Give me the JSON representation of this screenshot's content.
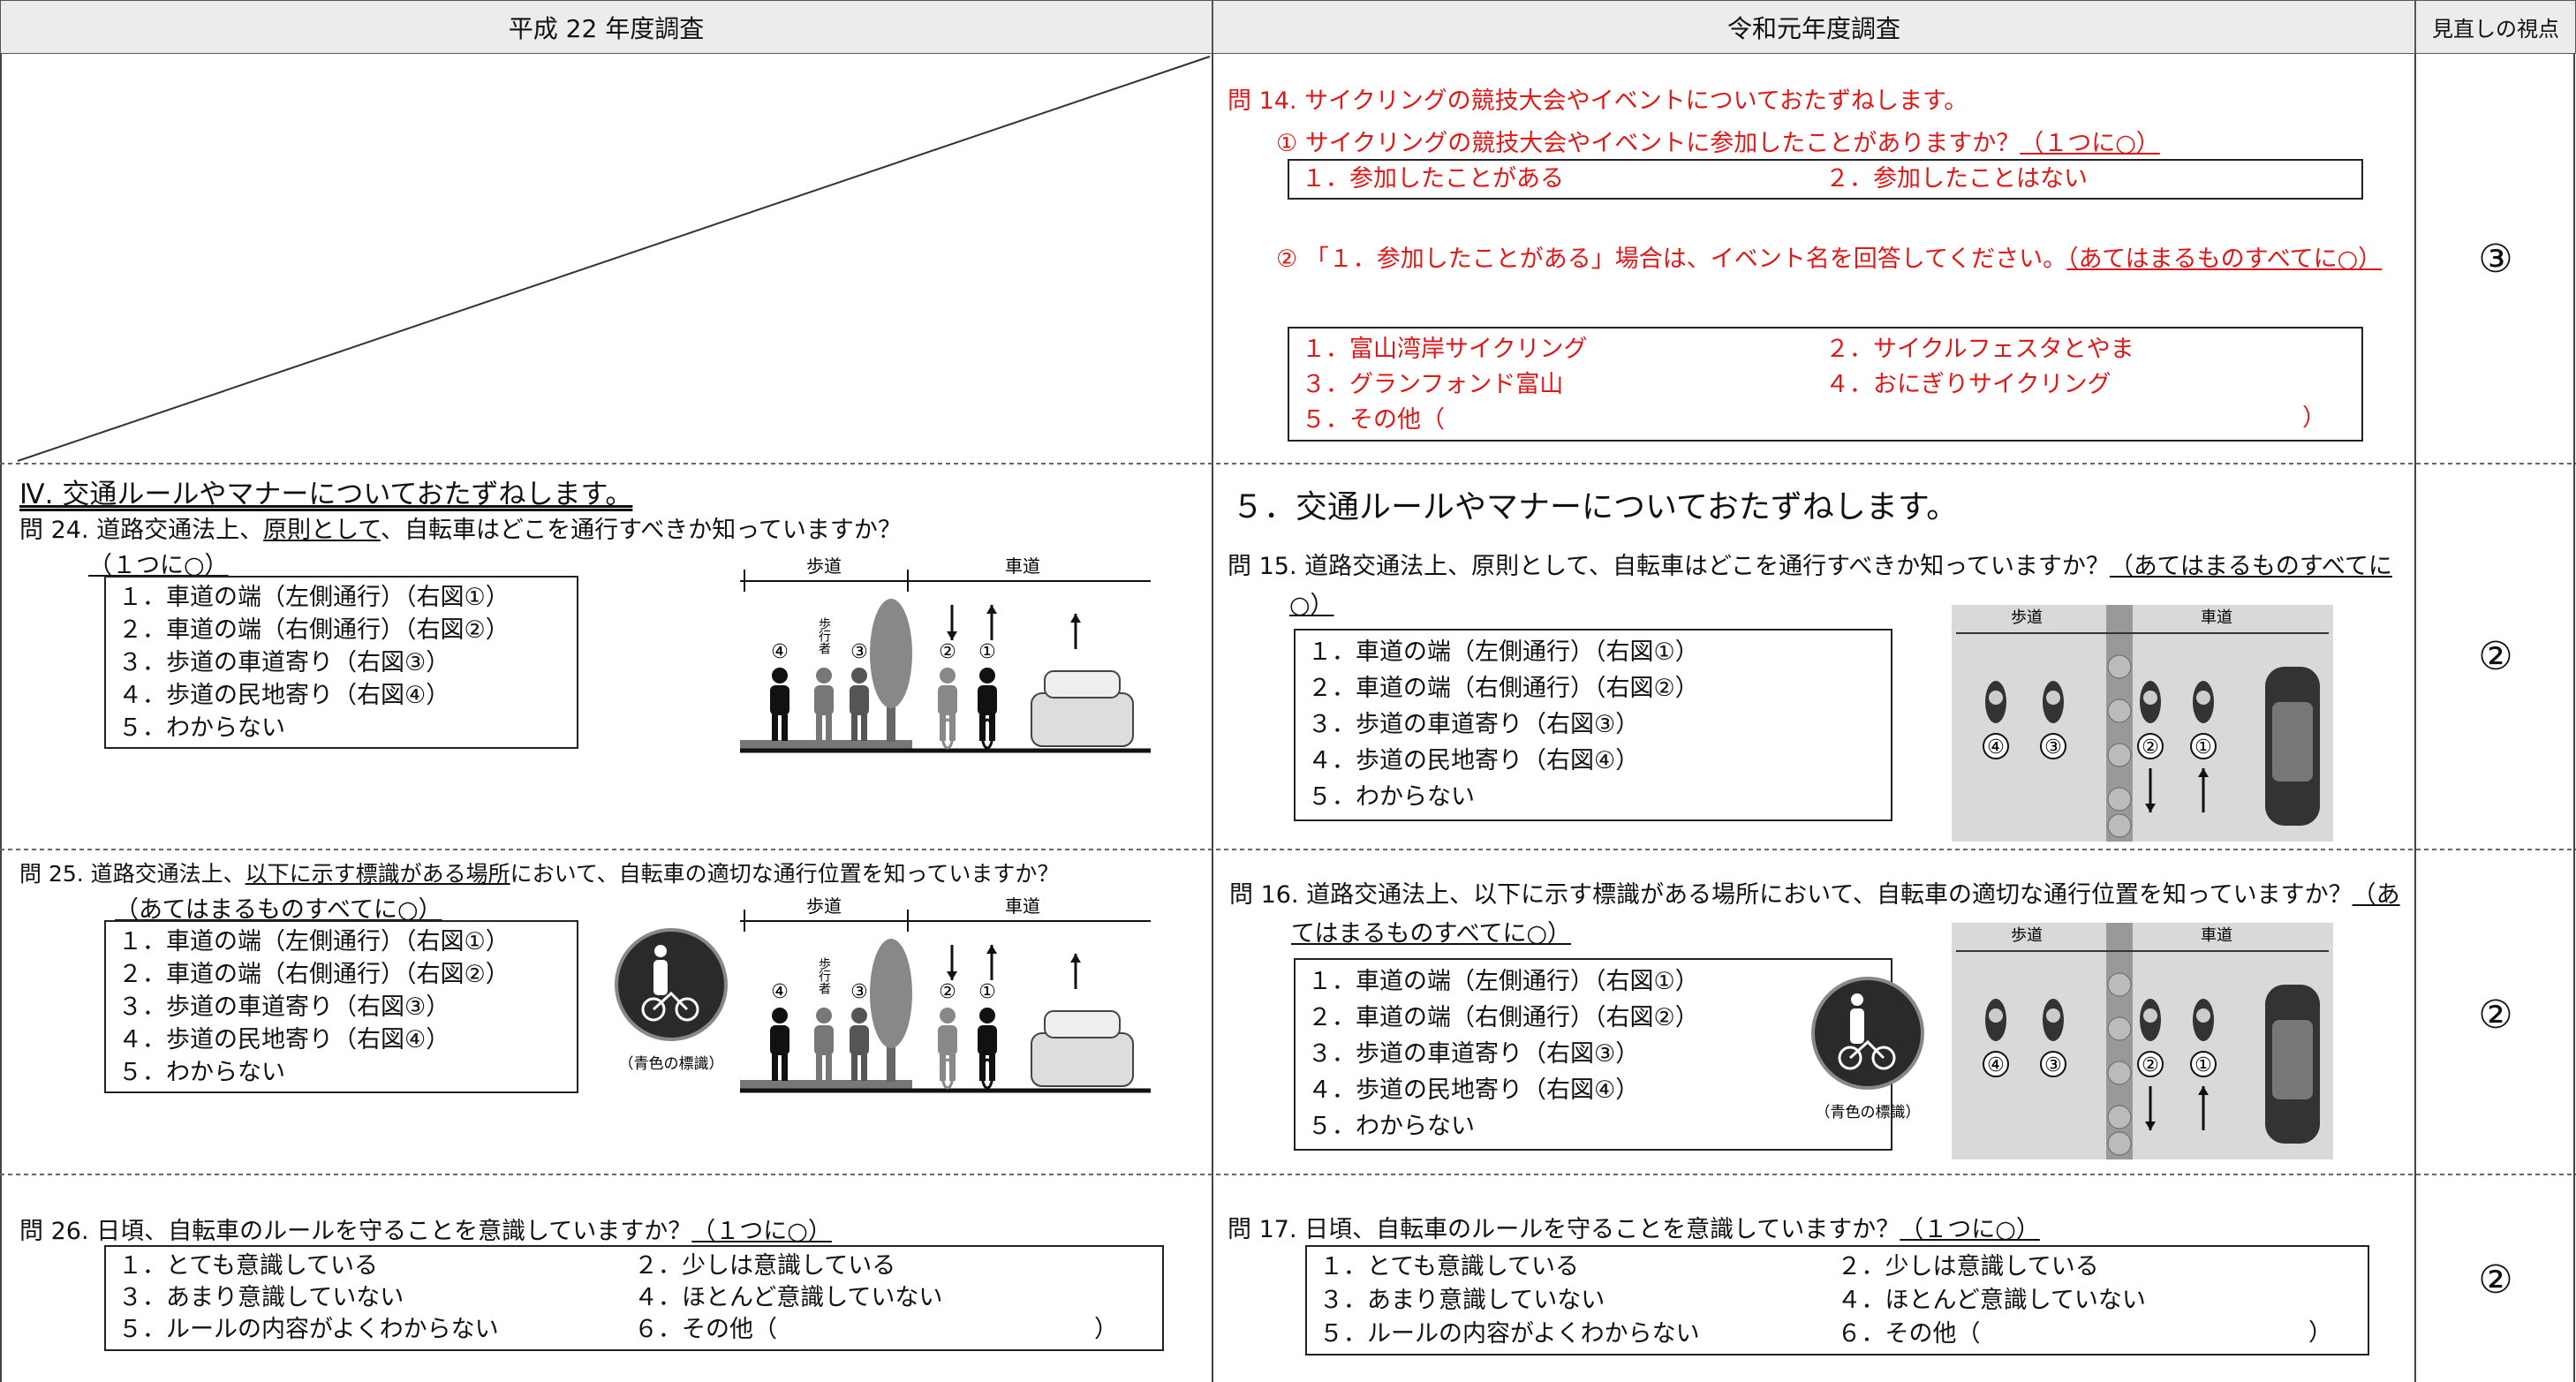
{
  "header": {
    "old": "平成 22 年度調査",
    "new": "令和元年度調査",
    "viewpoint": "見直しの視点"
  },
  "rows": [
    {
      "new": {
        "title": "問 14. サイクリングの競技大会やイベントについておたずねします。",
        "sub1": "① サイクリングの競技大会やイベントに参加したことがありますか？",
        "sub1_note": "（１つに○）",
        "sub1_options": [
          "１．参加したことがある",
          "２．参加したことはない"
        ],
        "sub2": "② 「１．参加したことがある」場合は、イベント名を回答してください。",
        "sub2_note": "（あてはまるものすべてに○）",
        "sub2_options": [
          "１．富山湾岸サイクリング",
          "２．サイクルフェスタとやま",
          "３．グランフォンド富山",
          "４．おにぎりサイクリング",
          "５．その他（"
        ],
        "other_close": "）"
      },
      "viewpoint": "③"
    },
    {
      "old": {
        "section": "Ⅳ. 交通ルールやマナーについておたずねします。",
        "q_pre": "問 24. 道路交通法上、",
        "q_em": "原則として",
        "q_post": "、自転車はどこを通行すべきか知っていますか？",
        "note": "（１つに○）",
        "options": [
          "１．車道の端（左側通行）（右図①）",
          "２．車道の端（右側通行）（右図②）",
          "３．歩道の車道寄り（右図③）",
          "４．歩道の民地寄り（右図④）",
          "５．わからない"
        ],
        "figure": {
          "sidewalk": "歩道",
          "roadway": "車道",
          "marks": [
            "④",
            "歩行者",
            "③",
            "②",
            "①"
          ]
        }
      },
      "new": {
        "section": "５．交通ルールやマナーについておたずねします。",
        "question": "問 15. 道路交通法上、原則として、自転車はどこを通行すべきか知っていますか？",
        "note": "（あてはまるものすべてに○）",
        "options": [
          "１．車道の端（左側通行）（右図①）",
          "２．車道の端（右側通行）（右図②）",
          "３．歩道の車道寄り（右図③）",
          "４．歩道の民地寄り（右図④）",
          "５．わからない"
        ],
        "figure": {
          "sidewalk": "歩道",
          "roadway": "車道",
          "marks": [
            "④",
            "③",
            "②",
            "①"
          ]
        }
      },
      "viewpoint": "②"
    },
    {
      "old": {
        "q_pre": "問 25. 道路交通法上、",
        "q_em": "以下に示す標識がある場所",
        "q_post": "において、自転車の適切な通行位置を知っていますか？",
        "note": "（あてはまるものすべてに○）",
        "options": [
          "１．車道の端（左側通行）（右図①）",
          "２．車道の端（右側通行）（右図②）",
          "３．歩道の車道寄り（右図③）",
          "４．歩道の民地寄り（右図④）",
          "５．わからない"
        ],
        "sign_caption": "（青色の標識）",
        "figure": {
          "sidewalk": "歩道",
          "roadway": "車道",
          "marks": [
            "④",
            "歩行者",
            "③",
            "②",
            "①"
          ]
        }
      },
      "new": {
        "question": "問 16. 道路交通法上、以下に示す標識がある場所において、自転車の適切な通行位置を知っていますか？",
        "note": "（あてはまるものすべてに○）",
        "options": [
          "１．車道の端（左側通行）（右図①）",
          "２．車道の端（右側通行）（右図②）",
          "３．歩道の車道寄り（右図③）",
          "４．歩道の民地寄り（右図④）",
          "５．わからない"
        ],
        "sign_caption": "（青色の標識）",
        "figure": {
          "sidewalk": "歩道",
          "roadway": "車道",
          "marks": [
            "④",
            "③",
            "②",
            "①"
          ]
        }
      },
      "viewpoint": "②"
    },
    {
      "old": {
        "question": "問 26. 日頃、自転車のルールを守ることを意識していますか？",
        "note": "（１つに○）",
        "options": [
          "１．とても意識している",
          "２．少しは意識している",
          "３．あまり意識していない",
          "４．ほとんど意識していない",
          "５．ルールの内容がよくわからない",
          "６．その他（"
        ],
        "other_close": "）"
      },
      "new": {
        "question": "問 17. 日頃、自転車のルールを守ることを意識していますか？",
        "note": "（１つに○）",
        "options": [
          "１．とても意識している",
          "２．少しは意識している",
          "３．あまり意識していない",
          "４．ほとんど意識していない",
          "５．ルールの内容がよくわからない",
          "６．その他（"
        ],
        "other_close": "）"
      },
      "viewpoint": "②"
    }
  ]
}
